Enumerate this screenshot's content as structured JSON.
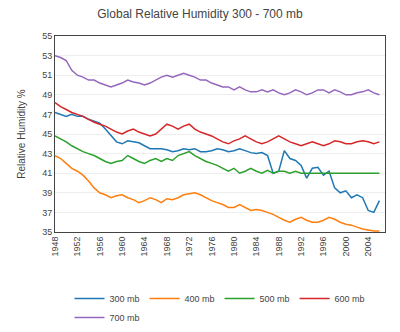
{
  "chart_data": {
    "type": "line",
    "title": "Global Relative Humidity 300 - 700 mb",
    "y_label": "Relative Humidity %",
    "x": [
      1948,
      1949,
      1950,
      1951,
      1952,
      1953,
      1954,
      1955,
      1956,
      1957,
      1958,
      1959,
      1960,
      1961,
      1962,
      1963,
      1964,
      1965,
      1966,
      1967,
      1968,
      1969,
      1970,
      1971,
      1972,
      1973,
      1974,
      1975,
      1976,
      1977,
      1978,
      1979,
      1980,
      1981,
      1982,
      1983,
      1984,
      1985,
      1986,
      1987,
      1988,
      1989,
      1990,
      1991,
      1992,
      1993,
      1994,
      1995,
      1996,
      1997,
      1998,
      1999,
      2000,
      2001,
      2002,
      2003,
      2004,
      2005,
      2006
    ],
    "series": [
      {
        "name": "300 mb",
        "values": [
          47.2,
          47.0,
          46.8,
          47.0,
          46.8,
          46.8,
          46.5,
          46.3,
          46.1,
          45.5,
          44.8,
          44.2,
          44.0,
          44.3,
          44.2,
          44.1,
          43.8,
          43.5,
          43.5,
          43.5,
          43.4,
          43.2,
          43.3,
          43.5,
          43.4,
          43.5,
          43.2,
          43.2,
          43.3,
          43.5,
          43.4,
          43.2,
          43.3,
          43.5,
          43.3,
          43.1,
          43.0,
          43.1,
          42.8,
          41.0,
          41.2,
          43.3,
          42.5,
          42.3,
          41.8,
          40.5,
          41.5,
          41.6,
          40.8,
          41.2,
          39.5,
          39.0,
          39.2,
          38.5,
          38.8,
          38.5,
          37.2,
          37.0,
          38.2
        ]
      },
      {
        "name": "400 mb",
        "values": [
          42.8,
          42.5,
          42.0,
          41.5,
          41.2,
          40.8,
          40.2,
          39.5,
          39.0,
          38.8,
          38.5,
          38.7,
          38.8,
          38.5,
          38.3,
          38.0,
          38.2,
          38.5,
          38.3,
          38.0,
          38.4,
          38.3,
          38.5,
          38.8,
          38.9,
          39.0,
          38.8,
          38.5,
          38.2,
          38.0,
          37.8,
          37.5,
          37.5,
          37.8,
          37.5,
          37.2,
          37.3,
          37.2,
          37.0,
          36.8,
          36.5,
          36.2,
          36.0,
          36.3,
          36.5,
          36.2,
          36.0,
          36.0,
          36.2,
          36.5,
          36.3,
          36.0,
          35.8,
          35.7,
          35.5,
          35.3,
          35.2,
          35.1,
          35.1
        ]
      },
      {
        "name": "500 mb",
        "values": [
          44.8,
          44.5,
          44.2,
          43.8,
          43.5,
          43.2,
          43.0,
          42.8,
          42.5,
          42.2,
          42.0,
          42.2,
          42.3,
          42.8,
          42.5,
          42.2,
          42.0,
          42.3,
          42.5,
          42.2,
          42.5,
          42.3,
          42.8,
          43.0,
          43.2,
          42.8,
          42.5,
          42.2,
          42.0,
          41.8,
          41.5,
          41.2,
          41.5,
          41.0,
          41.2,
          41.5,
          41.2,
          41.0,
          41.3,
          41.0,
          41.2,
          41.2,
          41.0,
          41.2,
          41.0,
          41.0,
          41.0,
          41.0,
          41.0,
          41.0,
          41.0,
          41.0,
          41.0,
          41.0,
          41.0,
          41.0,
          41.0,
          41.0,
          41.0
        ]
      },
      {
        "name": "600 mb",
        "values": [
          48.2,
          47.8,
          47.5,
          47.2,
          47.0,
          46.8,
          46.5,
          46.2,
          46.0,
          45.8,
          45.5,
          45.2,
          45.0,
          45.3,
          45.5,
          45.2,
          45.0,
          44.8,
          45.0,
          45.5,
          46.0,
          45.8,
          45.5,
          45.8,
          46.0,
          45.5,
          45.2,
          45.0,
          44.8,
          44.5,
          44.2,
          44.0,
          44.3,
          44.5,
          44.8,
          44.5,
          44.2,
          44.0,
          44.2,
          44.5,
          44.8,
          44.5,
          44.2,
          44.0,
          43.8,
          44.0,
          44.2,
          44.0,
          43.8,
          44.0,
          44.3,
          44.2,
          44.0,
          44.0,
          44.2,
          44.3,
          44.2,
          44.0,
          44.2
        ]
      },
      {
        "name": "700 mb",
        "values": [
          53.0,
          52.8,
          52.5,
          51.5,
          51.0,
          50.8,
          50.5,
          50.5,
          50.2,
          50.0,
          49.8,
          50.0,
          50.2,
          50.5,
          50.3,
          50.2,
          50.0,
          50.2,
          50.5,
          50.8,
          51.0,
          50.8,
          51.0,
          51.2,
          51.0,
          50.8,
          50.5,
          50.5,
          50.2,
          50.0,
          49.8,
          49.8,
          49.5,
          49.8,
          49.5,
          49.3,
          49.3,
          49.5,
          49.3,
          49.5,
          49.2,
          49.0,
          49.2,
          49.5,
          49.3,
          49.0,
          49.2,
          49.5,
          49.5,
          49.2,
          49.5,
          49.3,
          49.0,
          49.0,
          49.2,
          49.3,
          49.5,
          49.2,
          49.0
        ]
      }
    ],
    "xlim": [
      1948,
      2007
    ],
    "xticks": [
      1948,
      1952,
      1956,
      1960,
      1964,
      1968,
      1972,
      1976,
      1980,
      1984,
      1988,
      1992,
      1996,
      2000,
      2004
    ],
    "ylim": [
      35,
      55
    ],
    "yticks": [
      35,
      37,
      39,
      41,
      43,
      45,
      47,
      49,
      51,
      53,
      55
    ],
    "grid": "y",
    "legend": "bottom"
  }
}
